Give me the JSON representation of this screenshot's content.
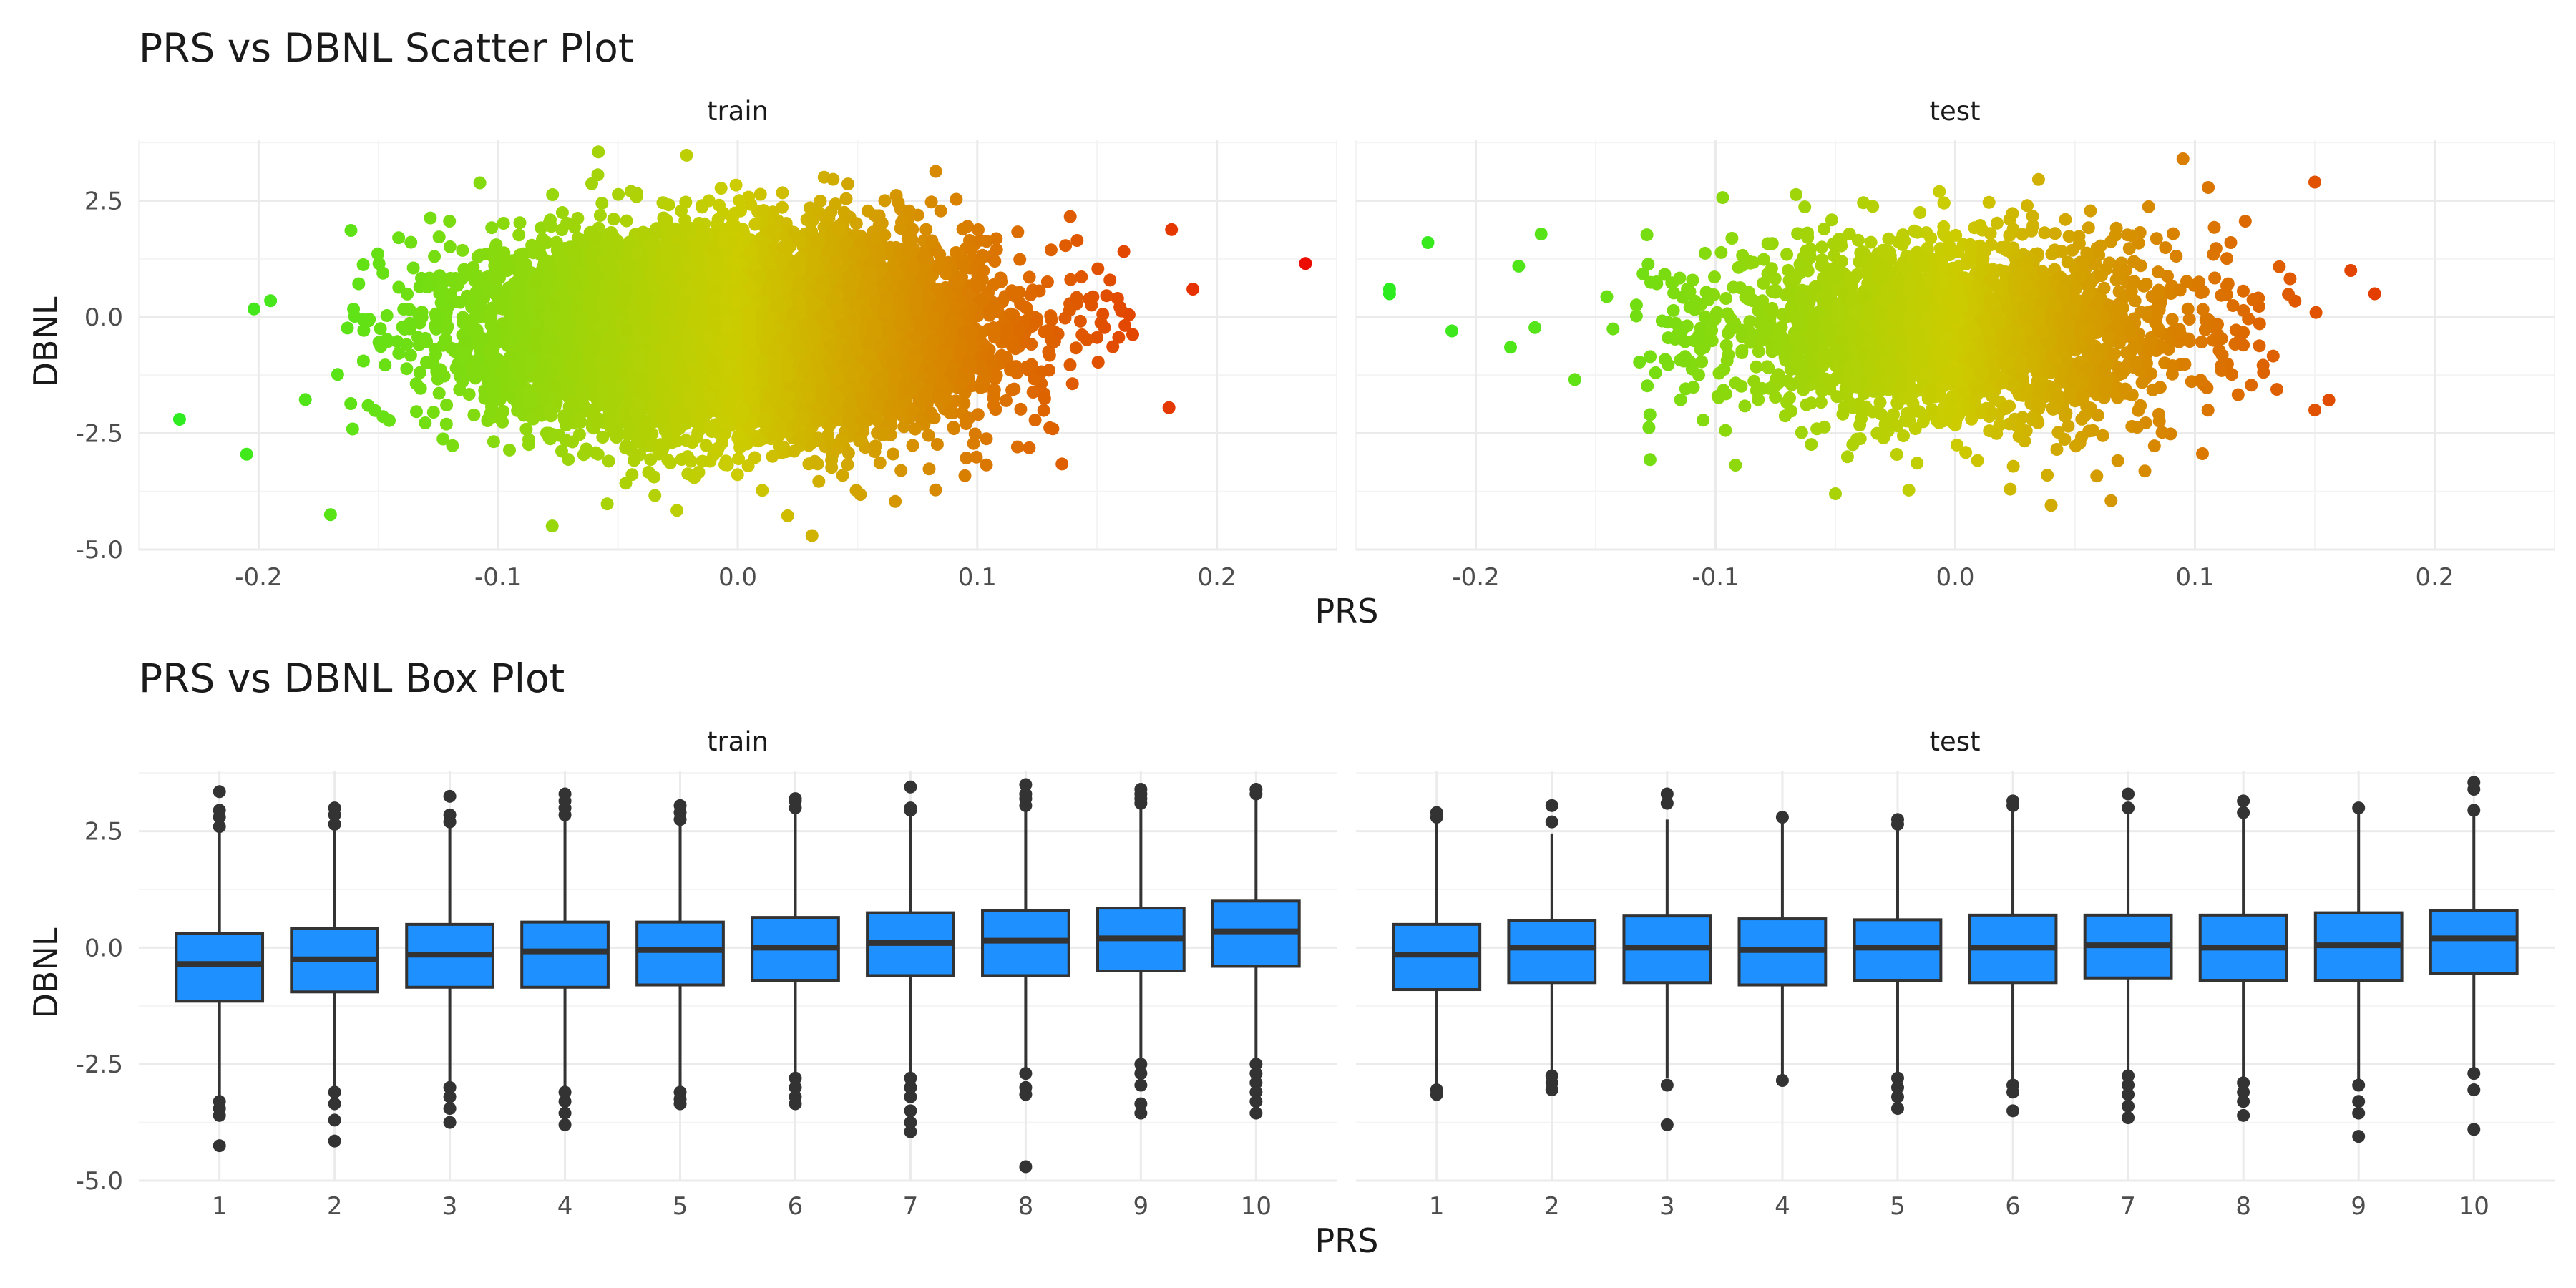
{
  "chart_data": [
    {
      "type": "scatter",
      "title": "PRS vs DBNL Scatter Plot",
      "xlabel": "PRS",
      "ylabel": "DBNL",
      "facets": [
        "train",
        "test"
      ],
      "xlim": [
        -0.25,
        0.25
      ],
      "ylim": [
        -5.0,
        3.8
      ],
      "x_ticks": [
        "-0.2",
        "-0.1",
        "0.0",
        "0.1",
        "0.2"
      ],
      "y_ticks": [
        "-5.0",
        "-2.5",
        "0.0",
        "2.5"
      ],
      "grid": true,
      "color_scale": {
        "low": "#22ee22",
        "mid": "#cccc00",
        "high": "#ee0000"
      },
      "point_cloud": {
        "train": {
          "n_approx": 20000,
          "x_mean": 0.0,
          "x_sd": 0.05,
          "y_mean": -0.3,
          "y_sd": 1.0
        },
        "test": {
          "n_approx": 5000,
          "x_mean": 0.0,
          "x_sd": 0.05,
          "y_mean": -0.3,
          "y_sd": 1.0
        }
      },
      "notable_points": {
        "train": [
          [
            -0.233,
            -2.2
          ],
          [
            -0.17,
            -4.25
          ],
          [
            0.031,
            -4.7
          ],
          [
            0.237,
            1.15
          ],
          [
            0.19,
            0.6
          ],
          [
            0.18,
            -1.95
          ],
          [
            -0.205,
            -2.95
          ],
          [
            -0.195,
            0.35
          ]
        ],
        "test": [
          [
            -0.236,
            0.6
          ],
          [
            -0.236,
            0.5
          ],
          [
            -0.22,
            1.6
          ],
          [
            -0.21,
            -0.3
          ],
          [
            0.175,
            0.5
          ],
          [
            0.15,
            2.9
          ],
          [
            0.15,
            -2.0
          ],
          [
            0.065,
            -3.95
          ],
          [
            0.04,
            -4.05
          ],
          [
            0.095,
            3.4
          ],
          [
            -0.05,
            -3.8
          ],
          [
            0.165,
            1.0
          ]
        ]
      }
    },
    {
      "type": "box",
      "title": "PRS vs DBNL Box Plot",
      "xlabel": "PRS",
      "ylabel": "DBNL",
      "facets": [
        "train",
        "test"
      ],
      "categories": [
        "1",
        "2",
        "3",
        "4",
        "5",
        "6",
        "7",
        "8",
        "9",
        "10"
      ],
      "ylim": [
        -5.0,
        3.8
      ],
      "y_ticks": [
        "-5.0",
        "-2.5",
        "0.0",
        "2.5"
      ],
      "fill": "#1e90ff",
      "grid": true,
      "series": [
        {
          "facet": "train",
          "boxes": [
            {
              "q1": -1.15,
              "median": -0.35,
              "q3": 0.3,
              "lower": -3.2,
              "upper": 2.5,
              "outliers": [
                -3.3,
                -3.45,
                -3.6,
                -4.25,
                2.6,
                2.8,
                2.95,
                3.35
              ]
            },
            {
              "q1": -0.95,
              "median": -0.25,
              "q3": 0.42,
              "lower": -3.0,
              "upper": 2.55,
              "outliers": [
                -3.1,
                -3.35,
                -3.7,
                -4.15,
                2.65,
                2.85,
                3.0
              ]
            },
            {
              "q1": -0.85,
              "median": -0.15,
              "q3": 0.5,
              "lower": -2.9,
              "upper": 2.6,
              "outliers": [
                -3.0,
                -3.2,
                -3.45,
                -3.75,
                2.7,
                2.85,
                3.25
              ]
            },
            {
              "q1": -0.85,
              "median": -0.08,
              "q3": 0.55,
              "lower": -3.0,
              "upper": 2.75,
              "outliers": [
                -3.1,
                -3.3,
                -3.55,
                -3.8,
                2.85,
                3.0,
                3.15,
                3.3
              ]
            },
            {
              "q1": -0.8,
              "median": -0.05,
              "q3": 0.55,
              "lower": -3.0,
              "upper": 2.65,
              "outliers": [
                -3.1,
                -3.25,
                -3.35,
                2.75,
                2.9,
                3.05
              ]
            },
            {
              "q1": -0.7,
              "median": 0.0,
              "q3": 0.65,
              "lower": -2.7,
              "upper": 2.9,
              "outliers": [
                -2.8,
                -3.0,
                -3.2,
                -3.35,
                3.0,
                3.15,
                3.2
              ]
            },
            {
              "q1": -0.6,
              "median": 0.1,
              "q3": 0.75,
              "lower": -2.7,
              "upper": 2.85,
              "outliers": [
                -2.8,
                -3.0,
                -3.2,
                -3.5,
                -3.75,
                -3.95,
                2.95,
                3.0,
                3.45
              ]
            },
            {
              "q1": -0.6,
              "median": 0.15,
              "q3": 0.8,
              "lower": -2.65,
              "upper": 2.95,
              "outliers": [
                -2.7,
                -3.0,
                -3.15,
                -4.7,
                3.05,
                3.2,
                3.3,
                3.5
              ]
            },
            {
              "q1": -0.5,
              "median": 0.2,
              "q3": 0.85,
              "lower": -2.4,
              "upper": 3.0,
              "outliers": [
                -2.5,
                -2.7,
                -2.95,
                -3.35,
                -3.55,
                3.1,
                3.2,
                3.3,
                3.4
              ]
            },
            {
              "q1": -0.4,
              "median": 0.35,
              "q3": 1.0,
              "lower": -2.4,
              "upper": 3.2,
              "outliers": [
                -2.5,
                -2.7,
                -2.9,
                -3.1,
                -3.3,
                -3.55,
                3.3,
                3.4
              ]
            }
          ]
        },
        {
          "facet": "test",
          "boxes": [
            {
              "q1": -0.9,
              "median": -0.15,
              "q3": 0.5,
              "lower": -3.0,
              "upper": 2.75,
              "outliers": [
                -3.05,
                -3.15,
                2.8,
                2.9
              ]
            },
            {
              "q1": -0.75,
              "median": 0.0,
              "q3": 0.58,
              "lower": -2.65,
              "upper": 2.45,
              "outliers": [
                -2.75,
                -2.9,
                -3.05,
                2.7,
                3.05
              ]
            },
            {
              "q1": -0.75,
              "median": 0.0,
              "q3": 0.68,
              "lower": -2.8,
              "upper": 2.75,
              "outliers": [
                -2.95,
                -3.8,
                3.1,
                3.3
              ]
            },
            {
              "q1": -0.8,
              "median": -0.05,
              "q3": 0.62,
              "lower": -2.8,
              "upper": 2.75,
              "outliers": [
                -2.85,
                2.8
              ]
            },
            {
              "q1": -0.7,
              "median": 0.0,
              "q3": 0.6,
              "lower": -2.7,
              "upper": 2.6,
              "outliers": [
                -2.8,
                -3.0,
                -3.2,
                -3.45,
                2.65,
                2.75
              ]
            },
            {
              "q1": -0.75,
              "median": 0.0,
              "q3": 0.7,
              "lower": -2.85,
              "upper": 3.0,
              "outliers": [
                -2.95,
                -3.1,
                -3.5,
                3.05,
                3.15
              ]
            },
            {
              "q1": -0.65,
              "median": 0.05,
              "q3": 0.7,
              "lower": -2.65,
              "upper": 2.9,
              "outliers": [
                -2.75,
                -2.95,
                -3.15,
                -3.4,
                -3.65,
                3.0,
                3.3
              ]
            },
            {
              "q1": -0.7,
              "median": 0.0,
              "q3": 0.7,
              "lower": -2.8,
              "upper": 2.8,
              "outliers": [
                -2.9,
                -3.1,
                -3.3,
                -3.6,
                2.9,
                3.15
              ]
            },
            {
              "q1": -0.7,
              "median": 0.05,
              "q3": 0.75,
              "lower": -2.85,
              "upper": 2.95,
              "outliers": [
                -2.95,
                -3.3,
                -3.55,
                -4.05,
                3.0
              ]
            },
            {
              "q1": -0.55,
              "median": 0.2,
              "q3": 0.8,
              "lower": -2.65,
              "upper": 2.9,
              "outliers": [
                -2.7,
                -3.05,
                -3.9,
                2.95,
                3.4,
                3.55
              ]
            }
          ]
        }
      ]
    }
  ]
}
